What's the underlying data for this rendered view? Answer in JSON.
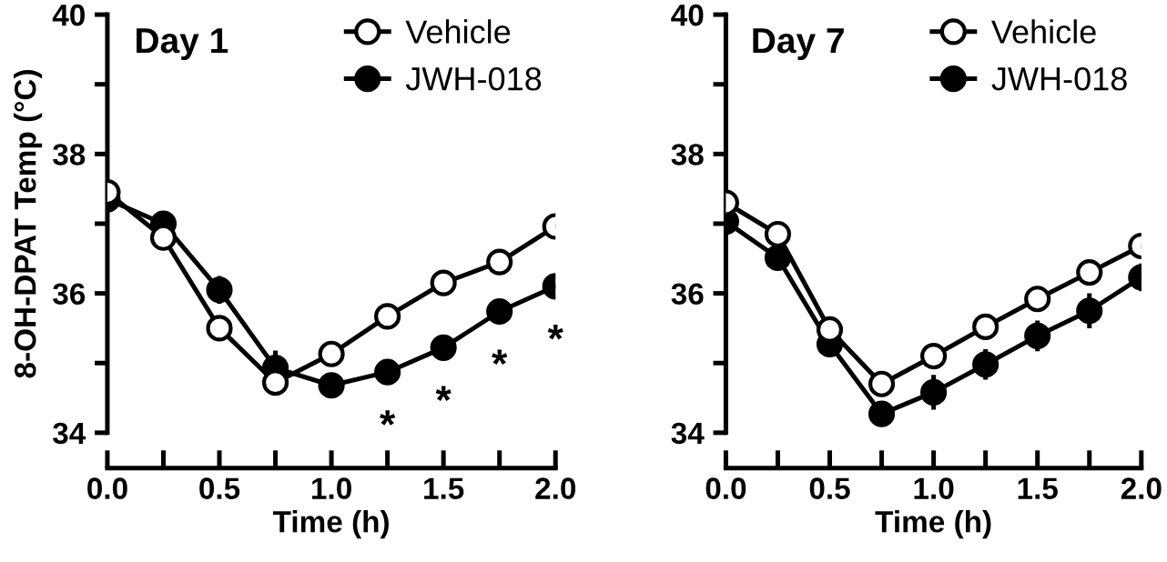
{
  "chart_data": [
    {
      "type": "line",
      "title": "Day 1",
      "xlabel": "Time (h)",
      "ylabel": "8-OH-DPAT Temp (°C)",
      "marker": "circle",
      "line_style": "solid",
      "legend": "top right",
      "grid": false,
      "x": [
        0,
        0.25,
        0.5,
        0.75,
        1.0,
        1.25,
        1.5,
        1.75,
        2.0
      ],
      "xlim": [
        0,
        2
      ],
      "xticks": [
        {
          "value": 0,
          "label": "0.0"
        },
        {
          "value": 0.25,
          "label": null
        },
        {
          "value": 0.5,
          "label": "0.5"
        },
        {
          "value": 0.75,
          "label": null
        },
        {
          "value": 1.0,
          "label": "1.0"
        },
        {
          "value": 1.25,
          "label": null
        },
        {
          "value": 1.5,
          "label": "1.5"
        },
        {
          "value": 1.75,
          "label": null
        },
        {
          "value": 2.0,
          "label": "2.0"
        }
      ],
      "ylim": [
        34,
        40
      ],
      "yticks": [
        34,
        {
          "value": 35,
          "label": null
        },
        36,
        {
          "value": 37,
          "label": null
        },
        38,
        {
          "value": 39,
          "label": null
        },
        40
      ],
      "series": [
        {
          "name": "Vehicle",
          "color": "#ffffff",
          "values": [
            37.45,
            36.8,
            35.5,
            34.72,
            35.13,
            35.67,
            36.15,
            36.45,
            36.96
          ]
        },
        {
          "name": "JWH-018",
          "color": "#000000",
          "values": [
            37.35,
            37.0,
            36.05,
            34.93,
            34.68,
            34.87,
            35.22,
            35.74,
            36.1
          ],
          "errors": [
            null,
            null,
            0.2,
            0.25,
            0.12,
            0.15,
            0.12,
            0.12,
            null
          ]
        }
      ],
      "annotations": [
        {
          "text": "*",
          "x": 1.25,
          "y": 34.87
        },
        {
          "text": "*",
          "x": 1.5,
          "y": 35.22
        },
        {
          "text": "*",
          "x": 1.75,
          "y": 35.74
        },
        {
          "text": "*",
          "x": 2.0,
          "y": 36.1
        }
      ]
    },
    {
      "type": "line",
      "title": "Day 7",
      "xlabel": "Time (h)",
      "marker": "circle",
      "line_style": "solid",
      "legend": "top right",
      "grid": false,
      "x": [
        0,
        0.25,
        0.5,
        0.75,
        1.0,
        1.25,
        1.5,
        1.75,
        2.0
      ],
      "xlim": [
        0,
        2
      ],
      "xticks": [
        {
          "value": 0,
          "label": "0.0"
        },
        {
          "value": 0.25,
          "label": null
        },
        {
          "value": 0.5,
          "label": "0.5"
        },
        {
          "value": 0.75,
          "label": null
        },
        {
          "value": 1.0,
          "label": "1.0"
        },
        {
          "value": 1.25,
          "label": null
        },
        {
          "value": 1.5,
          "label": "1.5"
        },
        {
          "value": 1.75,
          "label": null
        },
        {
          "value": 2.0,
          "label": "2.0"
        }
      ],
      "ylim": [
        34,
        40
      ],
      "yticks": [
        34,
        {
          "value": 35,
          "label": null
        },
        36,
        {
          "value": 37,
          "label": null
        },
        38,
        {
          "value": 39,
          "label": null
        },
        40
      ],
      "series": [
        {
          "name": "Vehicle",
          "color": "#ffffff",
          "values": [
            37.3,
            36.85,
            35.48,
            34.7,
            35.1,
            35.52,
            35.92,
            36.3,
            36.68
          ]
        },
        {
          "name": "JWH-018",
          "color": "#000000",
          "values": [
            37.03,
            36.51,
            35.27,
            34.27,
            34.58,
            34.98,
            35.39,
            35.75,
            36.23
          ],
          "errors": [
            null,
            null,
            null,
            null,
            0.25,
            0.22,
            0.22,
            0.25,
            0.2
          ]
        }
      ]
    }
  ]
}
